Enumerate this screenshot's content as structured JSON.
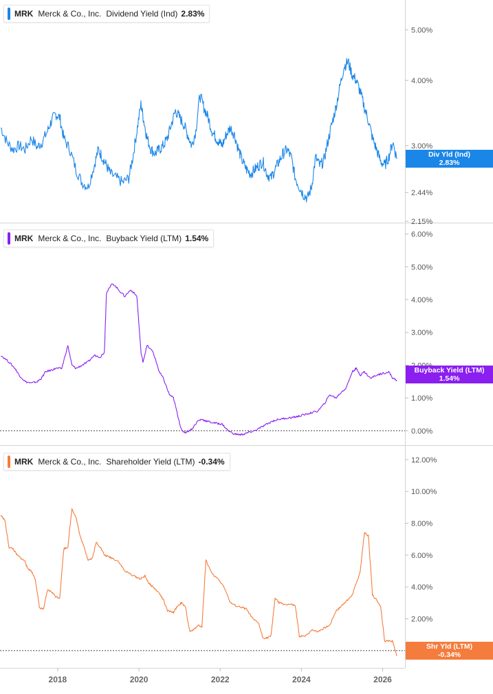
{
  "chart_data": [
    {
      "type": "line",
      "ticker": "MRK",
      "company": "Merck & Co., Inc.",
      "metric": "Dividend Yield (Ind)",
      "current_value": "2.83%",
      "badge_label": "Div Yld (Ind)",
      "badge_value": "2.83%",
      "color": "#1a86e8",
      "scale": "log",
      "ylim": [
        2.15,
        5.6
      ],
      "yticks": [
        {
          "label": "5.00%",
          "value": 5.0
        },
        {
          "label": "4.00%",
          "value": 4.0
        },
        {
          "label": "3.00%",
          "value": 3.0
        },
        {
          "label": "2.44%",
          "value": 2.44
        },
        {
          "label": "2.15%",
          "value": 2.15
        }
      ],
      "series": [
        {
          "x": [
            2016.6,
            2016.75,
            2016.9,
            2017.05,
            2017.2,
            2017.35,
            2017.5,
            2017.62,
            2017.75,
            2017.85,
            2017.95,
            2018.05,
            2018.15,
            2018.3,
            2018.45,
            2018.6,
            2018.75,
            2018.9,
            2019.0,
            2019.1,
            2019.2,
            2019.3,
            2019.45,
            2019.6,
            2019.75,
            2019.85,
            2019.95,
            2020.05,
            2020.12,
            2020.2,
            2020.3,
            2020.4,
            2020.5,
            2020.6,
            2020.7,
            2020.8,
            2020.9,
            2021.0,
            2021.1,
            2021.2,
            2021.3,
            2021.4,
            2021.5,
            2021.6,
            2021.7,
            2021.8,
            2021.9,
            2021.97,
            2022.05,
            2022.15,
            2022.25,
            2022.35,
            2022.45,
            2022.55,
            2022.65,
            2022.75,
            2022.85,
            2022.95,
            2023.05,
            2023.15,
            2023.25,
            2023.35,
            2023.45,
            2023.55,
            2023.65,
            2023.75,
            2023.85,
            2023.95,
            2024.05,
            2024.15,
            2024.25,
            2024.35,
            2024.45,
            2024.55,
            2024.65,
            2024.75,
            2024.85,
            2024.95,
            2025.05,
            2025.15,
            2025.25,
            2025.35,
            2025.45,
            2025.55,
            2025.65,
            2025.75,
            2025.85,
            2025.95,
            2026.05,
            2026.15,
            2026.25,
            2026.35
          ],
          "y": [
            3.25,
            3.05,
            2.95,
            3.0,
            2.95,
            3.1,
            2.98,
            3.05,
            3.2,
            3.35,
            3.45,
            3.4,
            3.1,
            2.95,
            2.7,
            2.55,
            2.5,
            2.75,
            2.95,
            2.85,
            2.75,
            2.65,
            2.6,
            2.55,
            2.6,
            2.85,
            3.2,
            3.6,
            3.35,
            3.1,
            2.95,
            2.9,
            2.95,
            3.0,
            3.1,
            3.3,
            3.5,
            3.4,
            3.3,
            3.15,
            3.0,
            3.2,
            3.75,
            3.55,
            3.4,
            3.2,
            3.1,
            3.05,
            3.0,
            3.15,
            3.25,
            3.15,
            2.95,
            2.8,
            2.7,
            2.65,
            2.7,
            2.75,
            2.8,
            2.65,
            2.6,
            2.7,
            2.8,
            2.9,
            2.95,
            2.85,
            2.6,
            2.5,
            2.42,
            2.38,
            2.5,
            2.85,
            2.75,
            2.8,
            3.05,
            3.3,
            3.55,
            3.9,
            4.25,
            4.35,
            4.1,
            4.0,
            3.8,
            3.55,
            3.35,
            3.1,
            2.95,
            2.8,
            2.75,
            2.85,
            3.05,
            2.83
          ]
        }
      ]
    },
    {
      "type": "line",
      "ticker": "MRK",
      "company": "Merck & Co., Inc.",
      "metric": "Buyback Yield (LTM)",
      "current_value": "1.54%",
      "badge_label": "Buyback Yield (LTM)",
      "badge_value": "1.54%",
      "color": "#8a1ff0",
      "scale": "linear",
      "ylim": [
        -0.4,
        6.2
      ],
      "yticks": [
        {
          "label": "6.00%",
          "value": 6.0
        },
        {
          "label": "5.00%",
          "value": 5.0
        },
        {
          "label": "4.00%",
          "value": 4.0
        },
        {
          "label": "3.00%",
          "value": 3.0
        },
        {
          "label": "2.00%",
          "value": 2.0
        },
        {
          "label": "1.00%",
          "value": 1.0
        },
        {
          "label": "0.00%",
          "value": 0.0
        }
      ],
      "series": [
        {
          "x": [
            2016.6,
            2016.8,
            2016.95,
            2017.05,
            2017.2,
            2017.35,
            2017.5,
            2017.6,
            2017.7,
            2017.85,
            2017.95,
            2018.1,
            2018.25,
            2018.35,
            2018.45,
            2018.6,
            2018.75,
            2018.9,
            2019.05,
            2019.15,
            2019.2,
            2019.35,
            2019.5,
            2019.65,
            2019.8,
            2019.95,
            2020.05,
            2020.1,
            2020.2,
            2020.35,
            2020.5,
            2020.6,
            2020.75,
            2020.85,
            2020.95,
            2021.05,
            2021.15,
            2021.3,
            2021.45,
            2021.55,
            2021.65,
            2021.8,
            2021.95,
            2022.05,
            2022.2,
            2022.35,
            2022.5,
            2022.6,
            2022.7,
            2022.85,
            2023.0,
            2023.15,
            2023.3,
            2023.45,
            2023.6,
            2023.75,
            2023.85,
            2023.95,
            2024.1,
            2024.25,
            2024.4,
            2024.55,
            2024.7,
            2024.85,
            2025.0,
            2025.1,
            2025.25,
            2025.35,
            2025.45,
            2025.55,
            2025.7,
            2025.85,
            2026.0,
            2026.15,
            2026.25,
            2026.35
          ],
          "y": [
            2.3,
            2.1,
            1.9,
            1.7,
            1.5,
            1.45,
            1.5,
            1.6,
            1.8,
            1.85,
            1.9,
            1.9,
            2.6,
            2.0,
            1.9,
            2.0,
            2.1,
            2.3,
            2.25,
            2.4,
            4.2,
            4.5,
            4.3,
            4.1,
            4.3,
            4.1,
            2.4,
            2.1,
            2.6,
            2.4,
            1.8,
            1.6,
            1.1,
            1.0,
            0.5,
            0.0,
            -0.05,
            0.05,
            0.3,
            0.35,
            0.3,
            0.25,
            0.22,
            0.2,
            0.0,
            -0.1,
            -0.12,
            -0.1,
            -0.05,
            0.0,
            0.1,
            0.2,
            0.3,
            0.35,
            0.38,
            0.4,
            0.42,
            0.45,
            0.5,
            0.55,
            0.6,
            0.8,
            1.1,
            1.0,
            1.2,
            1.3,
            1.8,
            1.9,
            1.7,
            1.8,
            1.6,
            1.7,
            1.75,
            1.8,
            1.6,
            1.54
          ]
        }
      ]
    },
    {
      "type": "line",
      "ticker": "MRK",
      "company": "Merck & Co., Inc.",
      "metric": "Shareholder Yield (LTM)",
      "current_value": "-0.34%",
      "badge_label": "Shr Yld (LTM)",
      "badge_value": "-0.34%",
      "color": "#f47c3c",
      "scale": "linear",
      "ylim": [
        -1.0,
        12.6
      ],
      "yticks": [
        {
          "label": "12.00%",
          "value": 12.0
        },
        {
          "label": "10.00%",
          "value": 10.0
        },
        {
          "label": "8.00%",
          "value": 8.0
        },
        {
          "label": "6.00%",
          "value": 6.0
        },
        {
          "label": "4.00%",
          "value": 4.0
        },
        {
          "label": "2.00%",
          "value": 2.0
        }
      ],
      "series": [
        {
          "x": [
            2016.6,
            2016.7,
            2016.8,
            2016.9,
            2017.0,
            2017.1,
            2017.2,
            2017.25,
            2017.35,
            2017.45,
            2017.55,
            2017.65,
            2017.75,
            2017.85,
            2017.95,
            2018.05,
            2018.15,
            2018.25,
            2018.35,
            2018.45,
            2018.55,
            2018.65,
            2018.75,
            2018.85,
            2018.95,
            2019.05,
            2019.15,
            2019.25,
            2019.35,
            2019.5,
            2019.65,
            2019.8,
            2019.95,
            2020.05,
            2020.15,
            2020.25,
            2020.35,
            2020.5,
            2020.6,
            2020.7,
            2020.85,
            2020.95,
            2021.05,
            2021.15,
            2021.25,
            2021.35,
            2021.45,
            2021.55,
            2021.65,
            2021.8,
            2021.95,
            2022.1,
            2022.25,
            2022.4,
            2022.55,
            2022.65,
            2022.8,
            2022.95,
            2023.05,
            2023.15,
            2023.25,
            2023.35,
            2023.45,
            2023.6,
            2023.75,
            2023.85,
            2023.95,
            2024.1,
            2024.25,
            2024.4,
            2024.55,
            2024.7,
            2024.85,
            2024.95,
            2025.05,
            2025.15,
            2025.25,
            2025.35,
            2025.45,
            2025.55,
            2025.65,
            2025.75,
            2025.85,
            2025.95,
            2026.05,
            2026.15,
            2026.25,
            2026.35
          ],
          "y": [
            8.5,
            8.2,
            6.5,
            6.4,
            6.0,
            5.8,
            5.6,
            5.2,
            5.0,
            4.5,
            2.7,
            2.6,
            3.8,
            3.7,
            3.4,
            3.3,
            6.4,
            6.5,
            8.9,
            8.4,
            7.2,
            6.5,
            5.7,
            5.8,
            6.8,
            6.5,
            6.0,
            5.9,
            5.8,
            5.6,
            5.0,
            4.8,
            4.6,
            4.5,
            4.7,
            4.2,
            4.0,
            3.6,
            3.2,
            2.5,
            2.4,
            2.8,
            3.0,
            2.7,
            1.2,
            1.3,
            1.6,
            1.5,
            5.7,
            4.8,
            4.5,
            4.0,
            3.0,
            2.8,
            2.7,
            2.6,
            2.0,
            1.7,
            0.8,
            0.8,
            0.9,
            3.3,
            3.0,
            2.9,
            2.9,
            2.8,
            0.9,
            0.9,
            1.3,
            1.2,
            1.4,
            1.6,
            2.5,
            2.7,
            3.0,
            3.2,
            3.5,
            4.2,
            5.0,
            7.4,
            7.2,
            3.5,
            3.2,
            2.8,
            0.6,
            0.6,
            0.6,
            -0.34
          ]
        }
      ]
    }
  ],
  "x_axis": {
    "ticks": [
      {
        "label": "2018",
        "value": 2018
      },
      {
        "label": "2020",
        "value": 2020
      },
      {
        "label": "2022",
        "value": 2022
      },
      {
        "label": "2024",
        "value": 2024
      },
      {
        "label": "2026",
        "value": 2026
      }
    ],
    "xlim": [
      2016.58,
      2026.55
    ]
  }
}
